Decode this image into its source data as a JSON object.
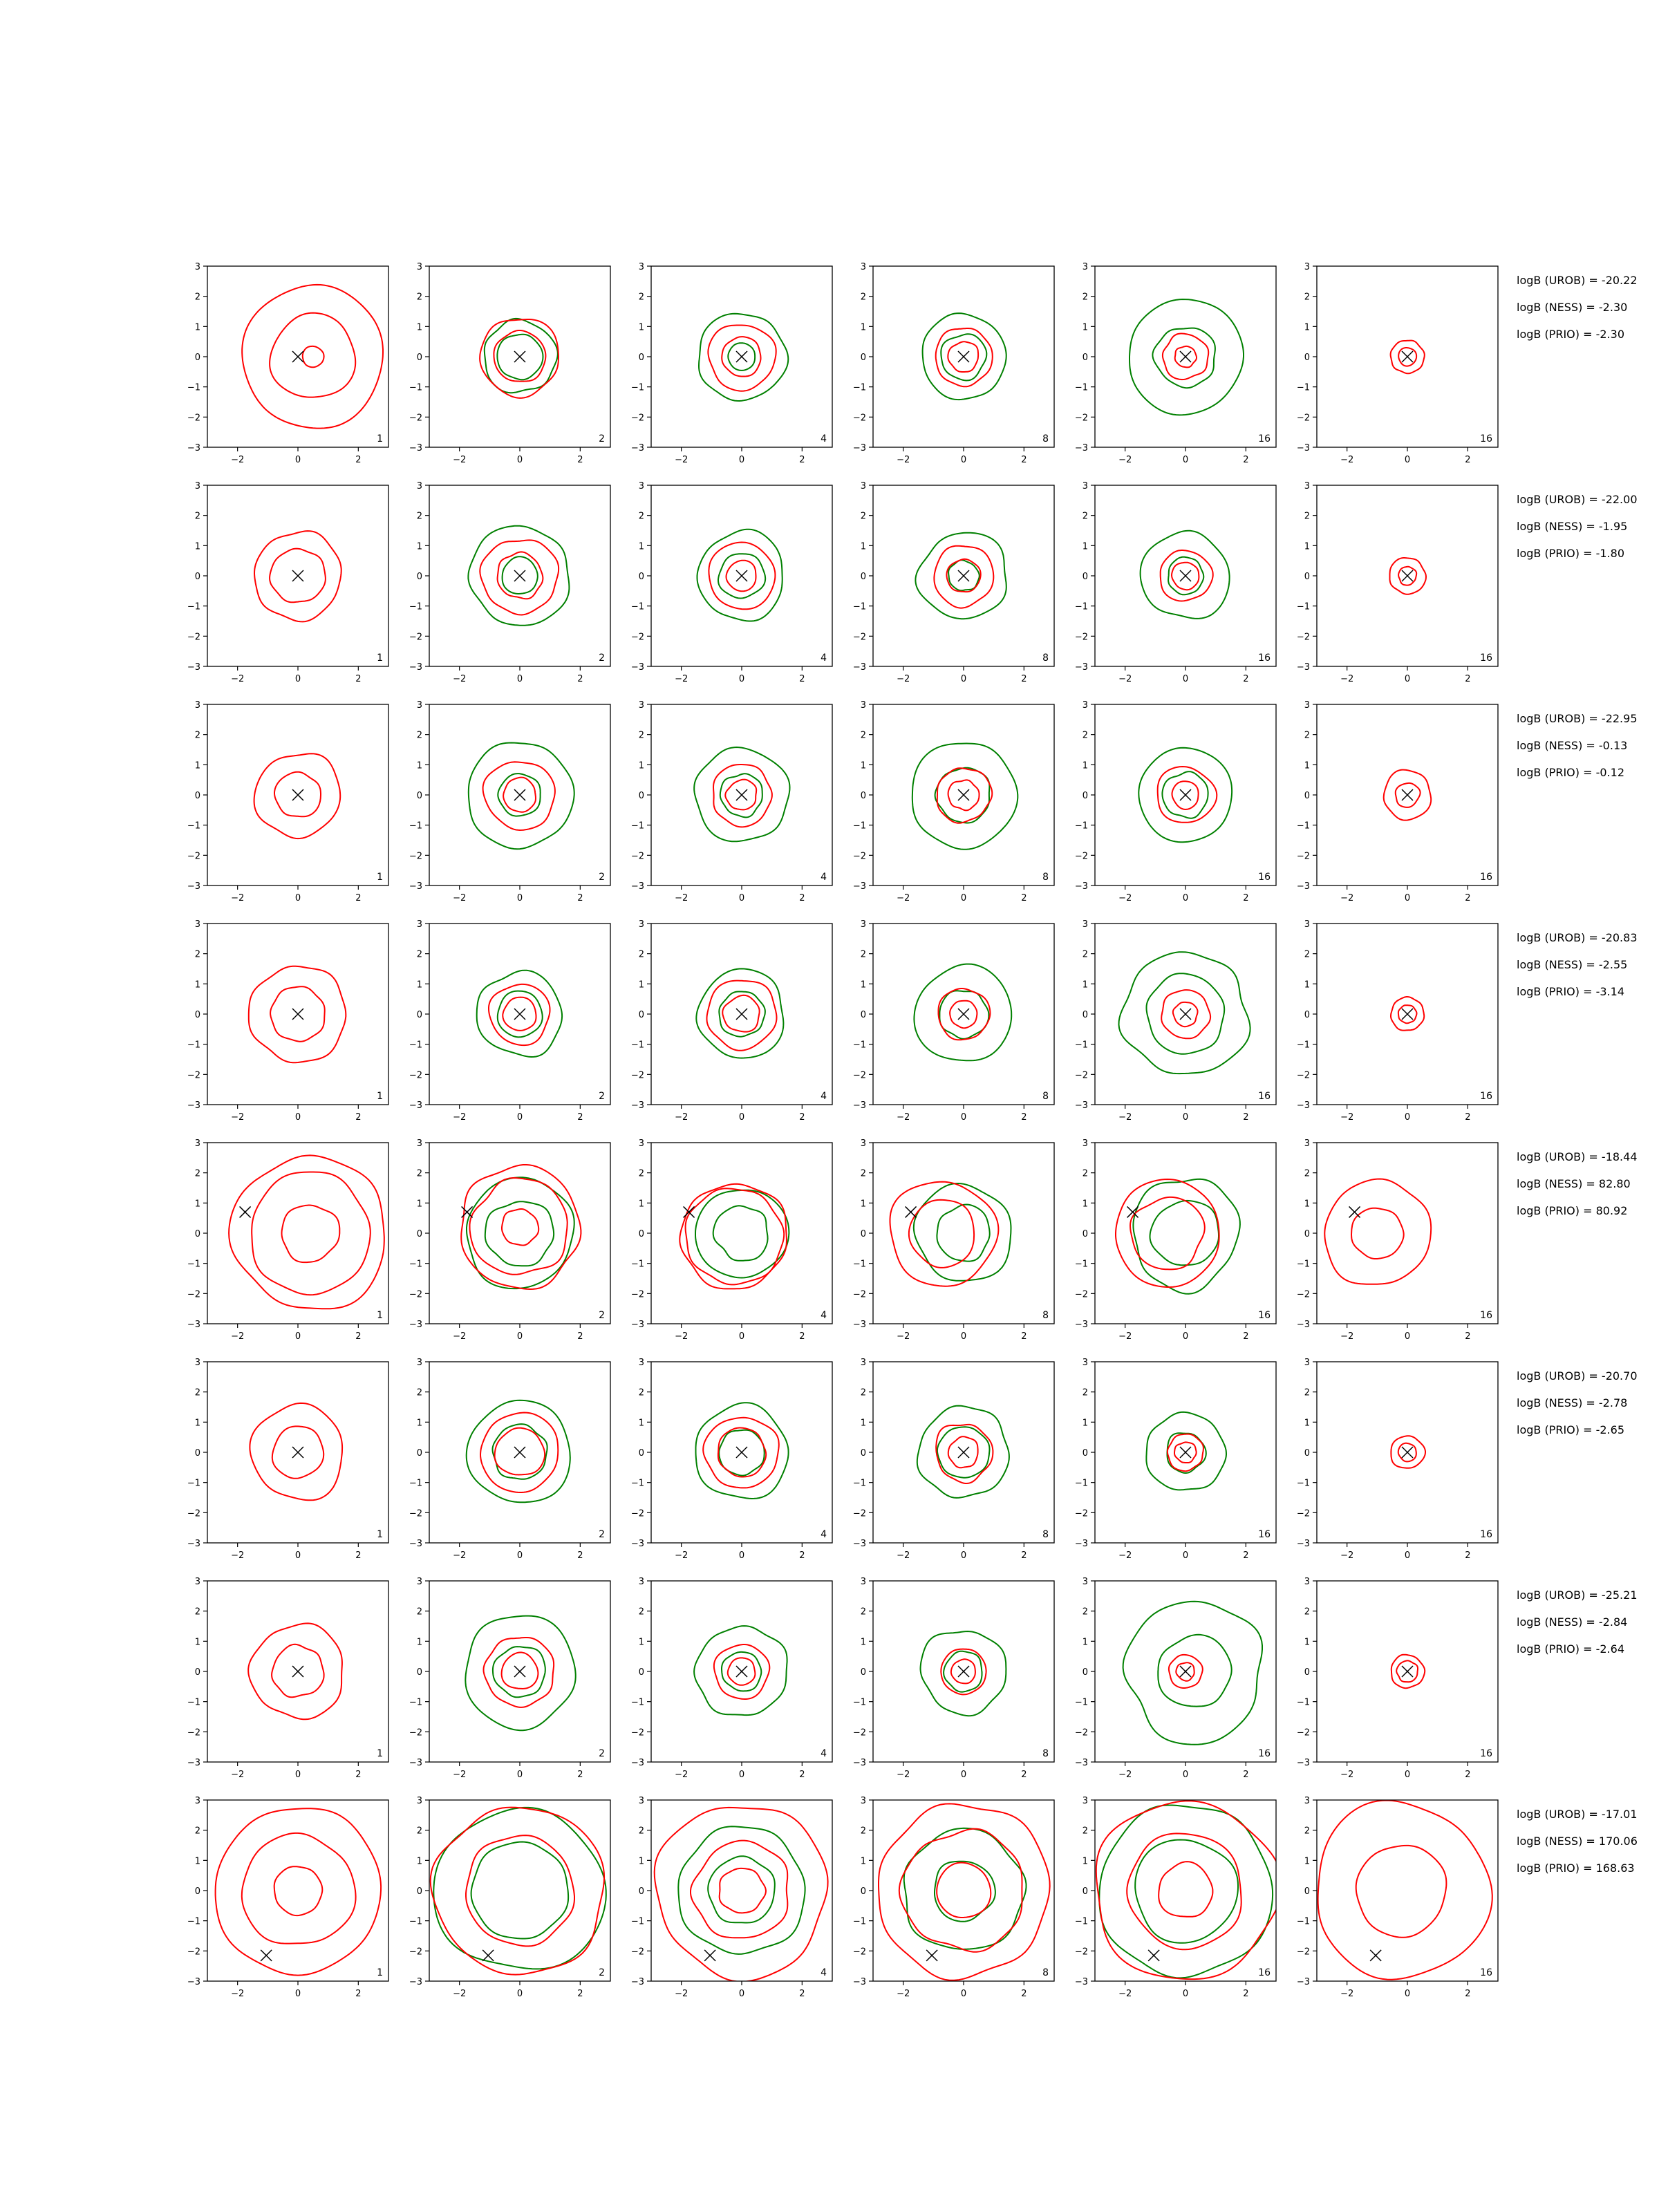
{
  "chart_data": {
    "type": "contour",
    "xlim": [
      -3,
      3
    ],
    "ylim": [
      -3,
      3
    ],
    "x_ticks": [
      -2,
      0,
      2
    ],
    "y_ticks": [
      3,
      2,
      1,
      0,
      -1,
      -2,
      -3
    ],
    "x_tick_labels": [
      "−2",
      "0",
      "2"
    ],
    "y_tick_labels": [
      "3",
      "2",
      "1",
      "0",
      "−1",
      "−2",
      "−3"
    ],
    "column_labels": [
      "1",
      "2",
      "4",
      "8",
      "16",
      "16"
    ],
    "series_colors": {
      "red": "#ff0000",
      "green": "#008000"
    },
    "marker_symbol": "x",
    "rows": [
      {
        "marker": [
          0,
          0
        ],
        "bayes_factors": [
          "logB (UROB) = -20.22",
          "logB (NESS) = -2.30",
          "logB (PRIO) = -2.30"
        ],
        "panels": [
          {
            "red": [
              2.35,
              1.4,
              0.35
            ],
            "green": [],
            "red_center": [
              0.5,
              0.0
            ]
          },
          {
            "red": [
              1.3,
              0.85
            ],
            "green": [
              1.2,
              0.75
            ]
          },
          {
            "red": [
              1.1,
              0.65
            ],
            "green": [
              1.45,
              0.45
            ]
          },
          {
            "red": [
              0.95,
              0.5
            ],
            "green": [
              1.4,
              0.75
            ]
          },
          {
            "red": [
              0.75,
              0.35
            ],
            "green": [
              1.9,
              1.0
            ]
          },
          {
            "red": [
              0.55,
              0.3
            ],
            "green": []
          }
        ]
      },
      {
        "marker": [
          0,
          0
        ],
        "bayes_factors": [
          "logB (UROB) = -22.00",
          "logB (NESS) = -1.95",
          "logB (PRIO) = -1.80"
        ],
        "panels": [
          {
            "red": [
              1.45,
              0.9
            ],
            "green": []
          },
          {
            "red": [
              1.25,
              0.75
            ],
            "green": [
              1.65,
              0.6
            ]
          },
          {
            "red": [
              1.1,
              0.5
            ],
            "green": [
              1.45,
              0.75
            ]
          },
          {
            "red": [
              1.0,
              0.55
            ],
            "green": [
              1.45,
              0.5
            ]
          },
          {
            "red": [
              0.85,
              0.45
            ],
            "green": [
              1.45,
              0.6
            ]
          },
          {
            "red": [
              0.6,
              0.3
            ],
            "green": []
          }
        ]
      },
      {
        "marker": [
          0,
          0
        ],
        "bayes_factors": [
          "logB (UROB) = -22.95",
          "logB (NESS) = -0.13",
          "logB (PRIO) = -0.12"
        ],
        "panels": [
          {
            "red": [
              1.4,
              0.75
            ],
            "green": []
          },
          {
            "red": [
              1.15,
              0.55
            ],
            "green": [
              1.75,
              0.7
            ]
          },
          {
            "red": [
              1.0,
              0.5
            ],
            "green": [
              1.55,
              0.7
            ]
          },
          {
            "red": [
              0.9,
              0.5
            ],
            "green": [
              1.75,
              0.9
            ]
          },
          {
            "red": [
              0.95,
              0.45
            ],
            "green": [
              1.55,
              0.75
            ]
          },
          {
            "red": [
              0.8,
              0.4
            ],
            "green": []
          }
        ]
      },
      {
        "marker": [
          0,
          0
        ],
        "bayes_factors": [
          "logB (UROB) = -20.83",
          "logB (NESS) = -2.55",
          "logB (PRIO) = -3.14"
        ],
        "panels": [
          {
            "red": [
              1.6,
              0.9
            ],
            "green": []
          },
          {
            "red": [
              1.0,
              0.55
            ],
            "green": [
              1.4,
              0.75
            ]
          },
          {
            "red": [
              1.15,
              0.6
            ],
            "green": [
              1.45,
              0.75
            ]
          },
          {
            "red": [
              0.85,
              0.45
            ],
            "green": [
              1.6,
              0.8
            ]
          },
          {
            "red": [
              0.8,
              0.4
            ],
            "green": [
              2.05,
              1.3
            ]
          },
          {
            "red": [
              0.55,
              0.3
            ],
            "green": []
          }
        ]
      },
      {
        "marker": [
          -1.75,
          0.7
        ],
        "bayes_factors": [
          "logB (UROB) = -18.44",
          "logB (NESS) = 82.80",
          "logB (PRIO) = 80.92"
        ],
        "panels": [
          {
            "red": [
              2.55,
              2.0,
              0.95
            ],
            "green": [],
            "red_center": [
              0.4,
              0.0
            ]
          },
          {
            "red": [
              2.0,
              1.6,
              0.6
            ],
            "green": [
              1.8,
              1.1
            ],
            "red_center": [
              0.0,
              0.2
            ]
          },
          {
            "red": [
              1.75,
              1.6
            ],
            "green": [
              1.5,
              0.9
            ],
            "red_center": [
              -0.25,
              -0.1
            ]
          },
          {
            "red": [
              1.75,
              1.1
            ],
            "green": [
              1.6,
              0.9
            ],
            "red_center": [
              -0.7,
              0.0
            ]
          },
          {
            "red": [
              1.75,
              1.2
            ],
            "green": [
              1.8,
              1.1
            ],
            "red_center": [
              -0.6,
              0.0
            ]
          },
          {
            "red": [
              1.75,
              0.85
            ],
            "green": [],
            "red_center": [
              -1.0,
              0.0
            ]
          }
        ]
      },
      {
        "marker": [
          0,
          0
        ],
        "bayes_factors": [
          "logB (UROB) = -20.70",
          "logB (NESS) = -2.78",
          "logB (PRIO) = -2.65"
        ],
        "panels": [
          {
            "red": [
              1.55,
              0.85
            ],
            "green": []
          },
          {
            "red": [
              1.3,
              0.8
            ],
            "green": [
              1.7,
              0.9
            ]
          },
          {
            "red": [
              1.2,
              0.8
            ],
            "green": [
              1.55,
              0.75
            ]
          },
          {
            "red": [
              0.95,
              0.5
            ],
            "green": [
              1.5,
              0.85
            ]
          },
          {
            "red": [
              0.6,
              0.35
            ],
            "green": [
              1.3,
              0.65
            ]
          },
          {
            "red": [
              0.55,
              0.3
            ],
            "green": []
          }
        ]
      },
      {
        "marker": [
          0,
          0
        ],
        "bayes_factors": [
          "logB (UROB) = -25.21",
          "logB (NESS) = -2.84",
          "logB (PRIO) = -2.64"
        ],
        "panels": [
          {
            "red": [
              1.55,
              0.85
            ],
            "green": []
          },
          {
            "red": [
              1.15,
              0.6
            ],
            "green": [
              1.85,
              0.85
            ]
          },
          {
            "red": [
              0.9,
              0.45
            ],
            "green": [
              1.5,
              0.65
            ]
          },
          {
            "red": [
              0.75,
              0.4
            ],
            "green": [
              1.4,
              0.65
            ]
          },
          {
            "red": [
              0.55,
              0.3
            ],
            "green": [
              2.3,
              1.2
            ],
            "green_center": [
              0.3,
              0.0
            ]
          },
          {
            "red": [
              0.55,
              0.35
            ],
            "green": []
          }
        ]
      },
      {
        "marker": [
          -1.05,
          -2.15
        ],
        "bayes_factors": [
          "logB (UROB) = -17.01",
          "logB (NESS) = 170.06",
          "logB (PRIO) = 168.63"
        ],
        "panels": [
          {
            "red": [
              2.75,
              1.85,
              0.8
            ],
            "green": []
          },
          {
            "red": [
              2.8,
              1.8
            ],
            "green": [
              2.75,
              1.6
            ]
          },
          {
            "red": [
              2.85,
              1.6,
              0.75
            ],
            "green": [
              2.1,
              1.1
            ]
          },
          {
            "red": [
              2.85,
              2.0,
              0.9
            ],
            "green": [
              2.0,
              1.0
            ]
          },
          {
            "red": [
              3.0,
              1.9,
              0.9
            ],
            "green": [
              2.85,
              1.7
            ]
          },
          {
            "red": [
              2.9,
              1.5
            ],
            "green": [],
            "red_center": [
              -0.2,
              0.0
            ]
          }
        ]
      }
    ]
  }
}
